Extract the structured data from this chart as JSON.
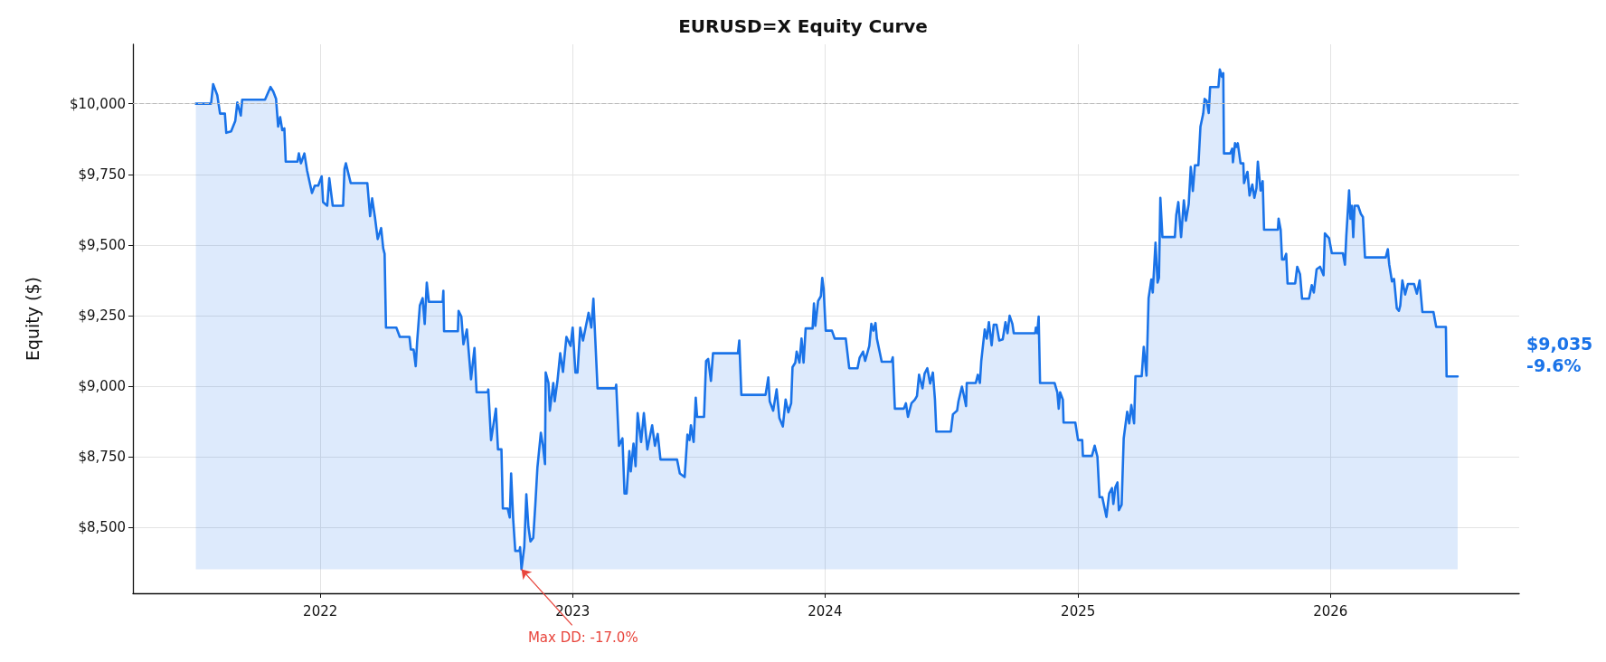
{
  "chart_data": {
    "type": "area",
    "title": "EURUSD=X Equity Curve",
    "ylabel": "Equity ($)",
    "xlim": [
      "2021-04-05",
      "2026-10-01"
    ],
    "xticks": [
      "2022",
      "2023",
      "2024",
      "2025",
      "2026"
    ],
    "ylim": [
      8268,
      10210
    ],
    "yticks": [
      {
        "value": 8500,
        "label": "$8,500"
      },
      {
        "value": 8750,
        "label": "$8,750"
      },
      {
        "value": 9000,
        "label": "$9,000"
      },
      {
        "value": 9250,
        "label": "$9,250"
      },
      {
        "value": 9500,
        "label": "$9,500"
      },
      {
        "value": 9750,
        "label": "$9,750"
      },
      {
        "value": 10000,
        "label": "$10,000"
      }
    ],
    "grid": true,
    "marker": "none",
    "line_style": "solid",
    "ref_lines": [
      {
        "axis": "y",
        "value": 10000,
        "color": "#bbbbbb",
        "line_style": "dashed"
      }
    ],
    "annotations": [
      {
        "text": "Max DD: -17.0%",
        "x": "2022-10-19",
        "y": 8353
      },
      "$9,035\n-9.6%"
    ],
    "series": [
      {
        "color": "#1a73e8",
        "x": [
          "2021-07-05",
          "2021-07-27",
          "2021-07-30",
          "2021-08-05",
          "2021-08-09",
          "2021-08-16",
          "2021-08-18",
          "2021-08-25",
          "2021-08-31",
          "2021-09-03",
          "2021-09-08",
          "2021-09-10",
          "2021-10-13",
          "2021-10-21",
          "2021-10-25",
          "2021-10-29",
          "2021-11-01",
          "2021-11-04",
          "2021-11-07",
          "2021-11-10",
          "2021-11-12",
          "2021-11-29",
          "2021-12-01",
          "2021-12-04",
          "2021-12-09",
          "2021-12-13",
          "2021-12-20",
          "2021-12-24",
          "2021-12-29",
          "2022-01-03",
          "2022-01-05",
          "2022-01-11",
          "2022-01-14",
          "2022-01-19",
          "2022-02-03",
          "2022-02-05",
          "2022-02-07",
          "2022-02-14",
          "2022-03-10",
          "2022-03-14",
          "2022-03-17",
          "2022-03-21",
          "2022-03-25",
          "2022-03-30",
          "2022-04-02",
          "2022-04-04",
          "2022-04-06",
          "2022-04-21",
          "2022-04-26",
          "2022-05-10",
          "2022-05-12",
          "2022-05-16",
          "2022-05-19",
          "2022-05-21",
          "2022-05-25",
          "2022-05-29",
          "2022-06-01",
          "2022-06-04",
          "2022-06-07",
          "2022-06-27",
          "2022-06-28",
          "2022-06-29",
          "2022-07-19",
          "2022-07-20",
          "2022-07-24",
          "2022-07-27",
          "2022-08-01",
          "2022-08-07",
          "2022-08-12",
          "2022-08-15",
          "2022-08-31",
          "2022-09-01",
          "2022-09-05",
          "2022-09-12",
          "2022-09-15",
          "2022-09-20",
          "2022-09-22",
          "2022-09-29",
          "2022-10-02",
          "2022-10-04",
          "2022-10-07",
          "2022-10-10",
          "2022-10-16",
          "2022-10-17",
          "2022-10-19",
          "2022-10-23",
          "2022-10-26",
          "2022-10-29",
          "2022-11-01",
          "2022-11-05",
          "2022-11-08",
          "2022-11-11",
          "2022-11-16",
          "2022-11-19",
          "2022-11-22",
          "2022-11-23",
          "2022-11-27",
          "2022-11-29",
          "2022-12-04",
          "2022-12-06",
          "2022-12-10",
          "2022-12-14",
          "2022-12-18",
          "2022-12-23",
          "2022-12-29",
          "2023-01-01",
          "2023-01-05",
          "2023-01-08",
          "2023-01-12",
          "2023-01-16",
          "2023-01-24",
          "2023-01-28",
          "2023-01-31",
          "2023-02-06",
          "2023-03-04",
          "2023-03-05",
          "2023-03-09",
          "2023-03-14",
          "2023-03-17",
          "2023-03-20",
          "2023-03-24",
          "2023-03-26",
          "2023-03-30",
          "2023-04-02",
          "2023-04-05",
          "2023-04-10",
          "2023-04-14",
          "2023-04-19",
          "2023-04-26",
          "2023-04-30",
          "2023-05-04",
          "2023-05-08",
          "2023-06-01",
          "2023-06-05",
          "2023-06-12",
          "2023-06-16",
          "2023-06-19",
          "2023-06-21",
          "2023-06-25",
          "2023-06-28",
          "2023-06-30",
          "2023-07-10",
          "2023-07-13",
          "2023-07-16",
          "2023-07-20",
          "2023-07-23",
          "2023-08-28",
          "2023-08-30",
          "2023-09-02",
          "2023-10-07",
          "2023-10-11",
          "2023-10-13",
          "2023-10-18",
          "2023-10-23",
          "2023-10-27",
          "2023-11-01",
          "2023-11-05",
          "2023-11-09",
          "2023-11-13",
          "2023-11-15",
          "2023-11-19",
          "2023-11-21",
          "2023-11-25",
          "2023-11-28",
          "2023-12-01",
          "2023-12-04",
          "2023-12-14",
          "2023-12-16",
          "2023-12-18",
          "2023-12-22",
          "2023-12-26",
          "2023-12-28",
          "2023-12-30",
          "2024-01-02",
          "2024-01-11",
          "2024-01-15",
          "2024-01-31",
          "2024-02-05",
          "2024-02-17",
          "2024-02-20",
          "2024-02-25",
          "2024-02-28",
          "2024-03-05",
          "2024-03-08",
          "2024-03-11",
          "2024-03-14",
          "2024-03-16",
          "2024-03-23",
          "2024-04-06",
          "2024-04-08",
          "2024-04-11",
          "2024-04-24",
          "2024-04-27",
          "2024-04-30",
          "2024-05-05",
          "2024-05-10",
          "2024-05-13",
          "2024-05-16",
          "2024-05-21",
          "2024-05-24",
          "2024-05-28",
          "2024-06-01",
          "2024-06-05",
          "2024-06-08",
          "2024-06-10",
          "2024-07-01",
          "2024-07-04",
          "2024-07-10",
          "2024-07-12",
          "2024-07-17",
          "2024-07-20",
          "2024-07-23",
          "2024-07-24",
          "2024-08-06",
          "2024-08-09",
          "2024-08-12",
          "2024-08-14",
          "2024-08-19",
          "2024-08-22",
          "2024-08-25",
          "2024-08-29",
          "2024-09-01",
          "2024-09-05",
          "2024-09-09",
          "2024-09-14",
          "2024-09-18",
          "2024-09-21",
          "2024-09-24",
          "2024-09-28",
          "2024-09-30",
          "2024-10-31",
          "2024-11-01",
          "2024-11-03",
          "2024-11-05",
          "2024-11-07",
          "2024-11-28",
          "2024-12-02",
          "2024-12-04",
          "2024-12-06",
          "2024-12-10",
          "2024-12-11",
          "2024-12-28",
          "2025-01-01",
          "2025-01-07",
          "2025-01-08",
          "2025-01-21",
          "2025-01-25",
          "2025-01-29",
          "2025-02-01",
          "2025-02-05",
          "2025-02-11",
          "2025-02-15",
          "2025-02-19",
          "2025-02-21",
          "2025-02-24",
          "2025-02-27",
          "2025-03-01",
          "2025-03-05",
          "2025-03-08",
          "2025-03-13",
          "2025-03-16",
          "2025-03-19",
          "2025-03-23",
          "2025-03-25",
          "2025-04-03",
          "2025-04-06",
          "2025-04-10",
          "2025-04-13",
          "2025-04-17",
          "2025-04-19",
          "2025-04-23",
          "2025-04-26",
          "2025-04-28",
          "2025-04-30",
          "2025-05-03",
          "2025-05-21",
          "2025-05-23",
          "2025-05-26",
          "2025-05-30",
          "2025-06-03",
          "2025-06-06",
          "2025-06-10",
          "2025-06-13",
          "2025-06-16",
          "2025-06-19",
          "2025-06-24",
          "2025-06-27",
          "2025-07-01",
          "2025-07-03",
          "2025-07-06",
          "2025-07-09",
          "2025-07-11",
          "2025-07-23",
          "2025-07-25",
          "2025-07-28",
          "2025-07-30",
          "2025-07-31",
          "2025-08-09",
          "2025-08-12",
          "2025-08-13",
          "2025-08-16",
          "2025-08-18",
          "2025-08-20",
          "2025-08-24",
          "2025-08-28",
          "2025-08-29",
          "2025-09-03",
          "2025-09-06",
          "2025-09-10",
          "2025-09-13",
          "2025-09-16",
          "2025-09-18",
          "2025-09-22",
          "2025-09-25",
          "2025-09-27",
          "2025-10-17",
          "2025-10-18",
          "2025-10-21",
          "2025-10-23",
          "2025-10-26",
          "2025-10-29",
          "2025-10-31",
          "2025-11-11",
          "2025-11-14",
          "2025-11-18",
          "2025-11-21",
          "2025-12-01",
          "2025-12-05",
          "2025-12-08",
          "2025-12-12",
          "2025-12-17",
          "2025-12-22",
          "2025-12-24",
          "2025-12-30",
          "2026-01-03",
          "2026-01-19",
          "2026-01-22",
          "2026-01-24",
          "2026-01-28",
          "2026-01-30",
          "2026-02-01",
          "2026-02-03",
          "2026-02-05",
          "2026-02-10",
          "2026-02-14",
          "2026-02-17",
          "2026-02-20",
          "2026-03-22",
          "2026-03-25",
          "2026-03-27",
          "2026-03-31",
          "2026-04-03",
          "2026-04-07",
          "2026-04-10",
          "2026-04-12",
          "2026-04-15",
          "2026-04-19",
          "2026-04-23",
          "2026-05-02",
          "2026-05-06",
          "2026-05-10",
          "2026-05-14",
          "2026-05-30",
          "2026-06-03",
          "2026-06-17",
          "2026-06-18",
          "2026-07-04"
        ],
        "values": [
          10000,
          10000,
          10069,
          10030,
          9965,
          9965,
          9897,
          9902,
          9939,
          10004,
          9958,
          10014,
          10014,
          10059,
          10043,
          10017,
          9919,
          9952,
          9906,
          9913,
          9795,
          9795,
          9824,
          9789,
          9824,
          9762,
          9684,
          9710,
          9710,
          9743,
          9652,
          9639,
          9736,
          9639,
          9639,
          9769,
          9789,
          9719,
          9719,
          9602,
          9665,
          9599,
          9521,
          9560,
          9488,
          9469,
          9208,
          9208,
          9175,
          9175,
          9130,
          9130,
          9071,
          9156,
          9286,
          9312,
          9221,
          9367,
          9299,
          9299,
          9338,
          9195,
          9195,
          9267,
          9247,
          9149,
          9201,
          9025,
          9136,
          8979,
          8979,
          8989,
          8810,
          8921,
          8777,
          8777,
          8568,
          8568,
          8536,
          8692,
          8529,
          8418,
          8418,
          8431,
          8353,
          8431,
          8618,
          8503,
          8451,
          8464,
          8581,
          8712,
          8836,
          8790,
          8725,
          9049,
          9012,
          8914,
          9012,
          8947,
          9019,
          9117,
          9051,
          9175,
          9143,
          9208,
          9049,
          9049,
          9208,
          9162,
          9260,
          9208,
          9310,
          8993,
          8993,
          9006,
          8790,
          8816,
          8621,
          8621,
          8771,
          8699,
          8797,
          8718,
          8905,
          8803,
          8905,
          8777,
          8862,
          8790,
          8832,
          8741,
          8741,
          8692,
          8679,
          8829,
          8810,
          8862,
          8803,
          8960,
          8892,
          8892,
          9090,
          9097,
          9019,
          9117,
          9117,
          9162,
          8970,
          8970,
          9032,
          8947,
          8914,
          8989,
          8888,
          8858,
          8953,
          8908,
          8940,
          9068,
          9084,
          9123,
          9084,
          9169,
          9084,
          9205,
          9205,
          9293,
          9214,
          9302,
          9319,
          9384,
          9345,
          9197,
          9197,
          9169,
          9169,
          9064,
          9064,
          9101,
          9123,
          9090,
          9143,
          9221,
          9197,
          9224,
          9169,
          9087,
          9087,
          9103,
          8921,
          8921,
          8940,
          8892,
          8940,
          8953,
          8966,
          9041,
          8993,
          9045,
          9064,
          9010,
          9049,
          8953,
          8840,
          8840,
          8901,
          8914,
          8947,
          8999,
          8966,
          8930,
          9012,
          9012,
          9041,
          9012,
          9090,
          9201,
          9169,
          9227,
          9145,
          9218,
          9218,
          9162,
          9166,
          9227,
          9188,
          9250,
          9221,
          9188,
          9188,
          9208,
          9188,
          9247,
          9012,
          9012,
          8979,
          8921,
          8979,
          8953,
          8872,
          8872,
          8810,
          8810,
          8754,
          8754,
          8790,
          8751,
          8608,
          8608,
          8538,
          8621,
          8640,
          8584,
          8644,
          8660,
          8562,
          8581,
          8816,
          8910,
          8869,
          8934,
          8869,
          9036,
          9036,
          9140,
          9038,
          9312,
          9378,
          9332,
          9508,
          9367,
          9384,
          9667,
          9528,
          9528,
          9606,
          9652,
          9528,
          9658,
          9586,
          9645,
          9776,
          9691,
          9782,
          9782,
          9919,
          9965,
          10017,
          10010,
          9967,
          10059,
          10059,
          10121,
          10095,
          10108,
          9824,
          9824,
          9841,
          9793,
          9860,
          9847,
          9860,
          9789,
          9789,
          9719,
          9759,
          9675,
          9714,
          9667,
          9701,
          9795,
          9693,
          9726,
          9554,
          9554,
          9593,
          9554,
          9449,
          9449,
          9469,
          9364,
          9364,
          9423,
          9397,
          9310,
          9310,
          9358,
          9332,
          9414,
          9423,
          9393,
          9541,
          9524,
          9471,
          9471,
          9430,
          9534,
          9693,
          9593,
          9639,
          9528,
          9639,
          9639,
          9610,
          9599,
          9456,
          9456,
          9485,
          9432,
          9371,
          9380,
          9276,
          9267,
          9286,
          9375,
          9325,
          9362,
          9362,
          9328,
          9375,
          9263,
          9263,
          9210,
          9210,
          9035,
          9035
        ]
      }
    ]
  }
}
